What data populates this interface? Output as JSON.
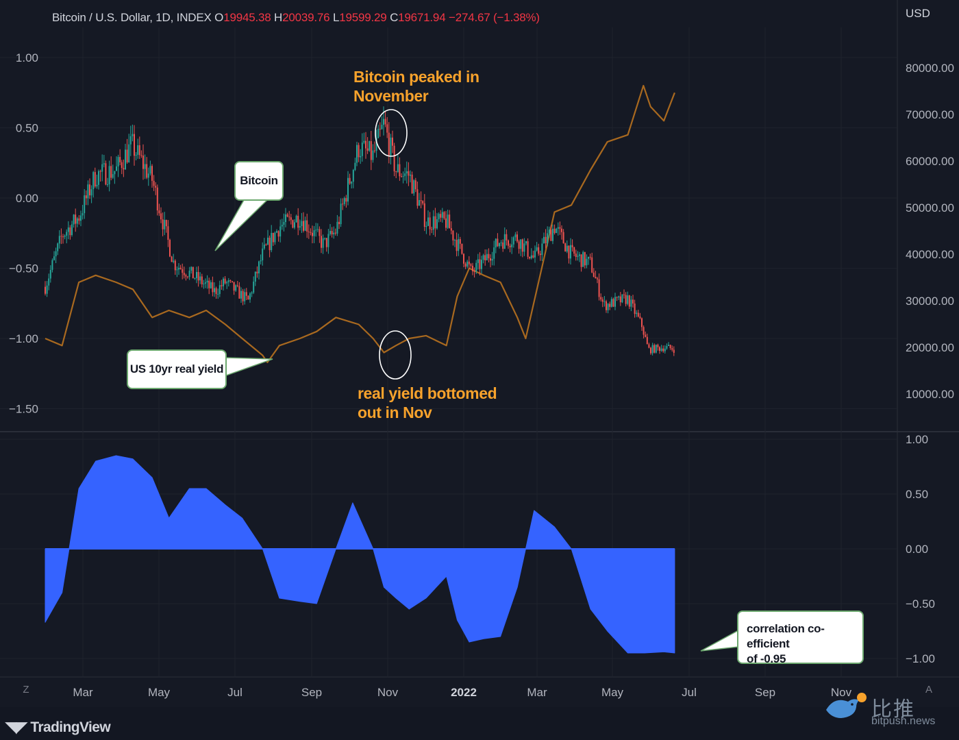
{
  "header": {
    "symbol": "Bitcoin / U.S. Dollar, 1D, INDEX",
    "open_label": "O",
    "open": "19945.38",
    "high_label": "H",
    "high": "20039.76",
    "low_label": "L",
    "low": "19599.29",
    "close_label": "C",
    "close": "19671.94",
    "change": "−274.67 (−1.38%)"
  },
  "currency_label": "USD",
  "annotations": {
    "btc_peak": "Bitcoin peaked in November",
    "btc_peak_line1": "Bitcoin peaked in",
    "btc_peak_line2": "November",
    "yield_bottom_line1": "real yield bottomed",
    "yield_bottom_line2": "out in Nov",
    "bitcoin_callout": "Bitcoin",
    "yield_callout": "US 10yr real yield",
    "corr_callout_line1": "correlation co-efficient",
    "corr_callout_line2": "of -0.95"
  },
  "footer": {
    "brand": "TradingView",
    "zoom_button": "Z",
    "auto_button": "A",
    "watermark_cn": "比推",
    "watermark_en": "bitpush.news"
  },
  "colors": {
    "background": "#151924",
    "candle_up": "#26a69a",
    "candle_down": "#ef5350",
    "real_yield_line": "#a9691f",
    "correlation_fill": "#3563ff",
    "annotation": "#f7a22c"
  },
  "chart_data": [
    {
      "type": "candlestick",
      "series_name": "Bitcoin",
      "y_axis": "right",
      "ylim": [
        10000,
        80000
      ],
      "right_ticks": [
        "80000.00",
        "70000.00",
        "60000.00",
        "50000.00",
        "40000.00",
        "30000.00",
        "20000.00",
        "10000.00"
      ],
      "x_ticks": [
        "Mar",
        "May",
        "Jul",
        "Sep",
        "Nov",
        "2022",
        "Mar",
        "May",
        "Jul",
        "Sep",
        "Nov"
      ],
      "x": [
        "2021-02-01",
        "2021-02-15",
        "2021-03-01",
        "2021-03-15",
        "2021-04-01",
        "2021-04-14",
        "2021-05-01",
        "2021-05-19",
        "2021-06-01",
        "2021-06-22",
        "2021-07-01",
        "2021-07-20",
        "2021-08-01",
        "2021-08-15",
        "2021-09-01",
        "2021-09-21",
        "2021-10-01",
        "2021-10-20",
        "2021-11-01",
        "2021-11-10",
        "2021-11-20",
        "2021-12-01",
        "2021-12-15",
        "2022-01-01",
        "2022-01-22",
        "2022-02-01",
        "2022-02-15",
        "2022-03-01",
        "2022-03-15",
        "2022-04-01",
        "2022-04-15",
        "2022-05-01",
        "2022-05-12",
        "2022-06-01",
        "2022-06-13",
        "2022-06-18",
        "2022-07-01",
        "2022-07-10"
      ],
      "values": [
        33000,
        44000,
        48000,
        57000,
        58000,
        63500,
        56000,
        38000,
        36000,
        32000,
        34000,
        30000,
        40000,
        46000,
        48000,
        42000,
        45000,
        63000,
        61000,
        68000,
        58000,
        57000,
        47000,
        47000,
        36000,
        38500,
        43000,
        43500,
        39000,
        46000,
        40000,
        38000,
        29000,
        30500,
        24500,
        19500,
        20000,
        19672
      ]
    },
    {
      "type": "line",
      "series_name": "US 10yr real yield",
      "y_axis": "left",
      "ylim": [
        -1.5,
        1.0
      ],
      "left_ticks": [
        "1.00",
        "0.50",
        "0.00",
        "−0.50",
        "−1.00",
        "−1.50"
      ],
      "x": [
        "2021-02-01",
        "2021-02-15",
        "2021-03-01",
        "2021-03-15",
        "2021-04-01",
        "2021-04-15",
        "2021-05-01",
        "2021-05-15",
        "2021-06-01",
        "2021-06-15",
        "2021-07-01",
        "2021-07-15",
        "2021-08-01",
        "2021-08-05",
        "2021-08-15",
        "2021-09-01",
        "2021-09-15",
        "2021-10-01",
        "2021-10-20",
        "2021-11-01",
        "2021-11-10",
        "2021-11-20",
        "2021-12-01",
        "2021-12-15",
        "2022-01-01",
        "2022-01-10",
        "2022-01-20",
        "2022-02-01",
        "2022-02-15",
        "2022-03-01",
        "2022-03-08",
        "2022-03-20",
        "2022-04-01",
        "2022-04-15",
        "2022-05-01",
        "2022-05-15",
        "2022-06-01",
        "2022-06-14",
        "2022-06-20",
        "2022-07-01",
        "2022-07-10"
      ],
      "values": [
        -1.0,
        -1.05,
        -0.6,
        -0.55,
        -0.6,
        -0.65,
        -0.85,
        -0.8,
        -0.85,
        -0.8,
        -0.9,
        -1.0,
        -1.12,
        -1.17,
        -1.05,
        -1.0,
        -0.95,
        -0.85,
        -0.9,
        -1.0,
        -1.1,
        -1.05,
        -1.0,
        -0.98,
        -1.05,
        -0.7,
        -0.5,
        -0.55,
        -0.6,
        -0.85,
        -1.0,
        -0.55,
        -0.1,
        -0.05,
        0.2,
        0.4,
        0.45,
        0.8,
        0.65,
        0.55,
        0.75
      ]
    },
    {
      "type": "area",
      "series_name": "correlation co-efficient",
      "ylim": [
        -1.0,
        1.0
      ],
      "right_ticks": [
        "1.00",
        "0.50",
        "0.00",
        "−0.50",
        "−1.00"
      ],
      "x": [
        "2021-02-01",
        "2021-02-15",
        "2021-03-01",
        "2021-03-15",
        "2021-04-01",
        "2021-04-15",
        "2021-05-01",
        "2021-05-15",
        "2021-06-01",
        "2021-06-15",
        "2021-07-01",
        "2021-07-15",
        "2021-08-01",
        "2021-08-15",
        "2021-09-01",
        "2021-09-15",
        "2021-10-01",
        "2021-10-15",
        "2021-11-01",
        "2021-11-10",
        "2021-11-20",
        "2021-12-01",
        "2021-12-15",
        "2022-01-01",
        "2022-01-10",
        "2022-01-20",
        "2022-02-01",
        "2022-02-15",
        "2022-03-01",
        "2022-03-15",
        "2022-04-01",
        "2022-04-15",
        "2022-05-01",
        "2022-05-15",
        "2022-06-01",
        "2022-06-15",
        "2022-07-01",
        "2022-07-10"
      ],
      "values": [
        -0.67,
        -0.4,
        0.55,
        0.8,
        0.85,
        0.82,
        0.65,
        0.28,
        0.55,
        0.55,
        0.4,
        0.28,
        0.0,
        -0.45,
        -0.48,
        -0.5,
        0.0,
        0.42,
        0.0,
        -0.35,
        -0.45,
        -0.55,
        -0.45,
        -0.25,
        -0.65,
        -0.85,
        -0.82,
        -0.8,
        -0.35,
        0.35,
        0.2,
        0.0,
        -0.55,
        -0.75,
        -0.95,
        -0.95,
        -0.94,
        -0.95
      ]
    }
  ]
}
